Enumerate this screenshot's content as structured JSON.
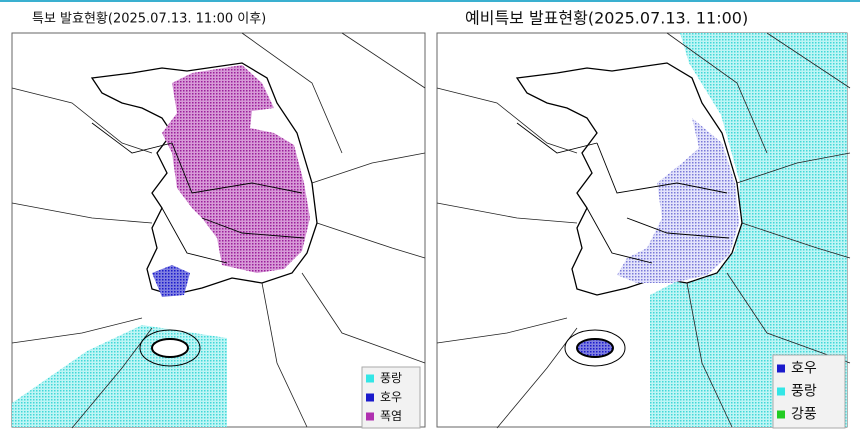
{
  "panels": [
    {
      "title": "특보 발효현황(2025.07.13. 11:00 이후)",
      "legend": [
        {
          "label": "풍랑",
          "color": "#33e6e6"
        },
        {
          "label": "호우",
          "color": "#1a1acc"
        },
        {
          "label": "폭염",
          "color": "#b030b0"
        }
      ]
    },
    {
      "title": "예비특보 발표현황(2025.07.13. 11:00)",
      "legend": [
        {
          "label": "호우",
          "color": "#1a1acc"
        },
        {
          "label": "풍랑",
          "color": "#33e6e6"
        },
        {
          "label": "강풍",
          "color": "#22cc22"
        }
      ]
    }
  ]
}
